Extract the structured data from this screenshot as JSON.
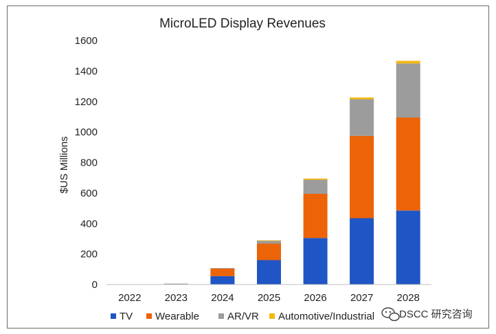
{
  "chart_data": {
    "type": "bar",
    "stacked": true,
    "title": "MicroLED Display Revenues",
    "xlabel": "",
    "ylabel": "$US  Millions",
    "ylim": [
      0,
      1600
    ],
    "yticks": [
      0,
      200,
      400,
      600,
      800,
      1000,
      1200,
      1400,
      1600
    ],
    "grid": false,
    "legend_position": "bottom",
    "categories": [
      "2022",
      "2023",
      "2024",
      "2025",
      "2026",
      "2027",
      "2028"
    ],
    "series": [
      {
        "name": "TV",
        "color": "#1f55c4",
        "values": [
          0,
          3,
          55,
          160,
          305,
          435,
          485
        ]
      },
      {
        "name": "Wearable",
        "color": "#ec6308",
        "values": [
          0,
          2,
          50,
          108,
          290,
          540,
          610
        ]
      },
      {
        "name": "AR/VR",
        "color": "#9c9c9c",
        "values": [
          0,
          1,
          3,
          20,
          92,
          240,
          355
        ]
      },
      {
        "name": "Automotive/Industrial",
        "color": "#f5b70f",
        "values": [
          0,
          0,
          0,
          2,
          8,
          12,
          17
        ]
      }
    ]
  },
  "watermark": {
    "icon": "wechat-icon",
    "text": "DSCC 研究咨询"
  }
}
